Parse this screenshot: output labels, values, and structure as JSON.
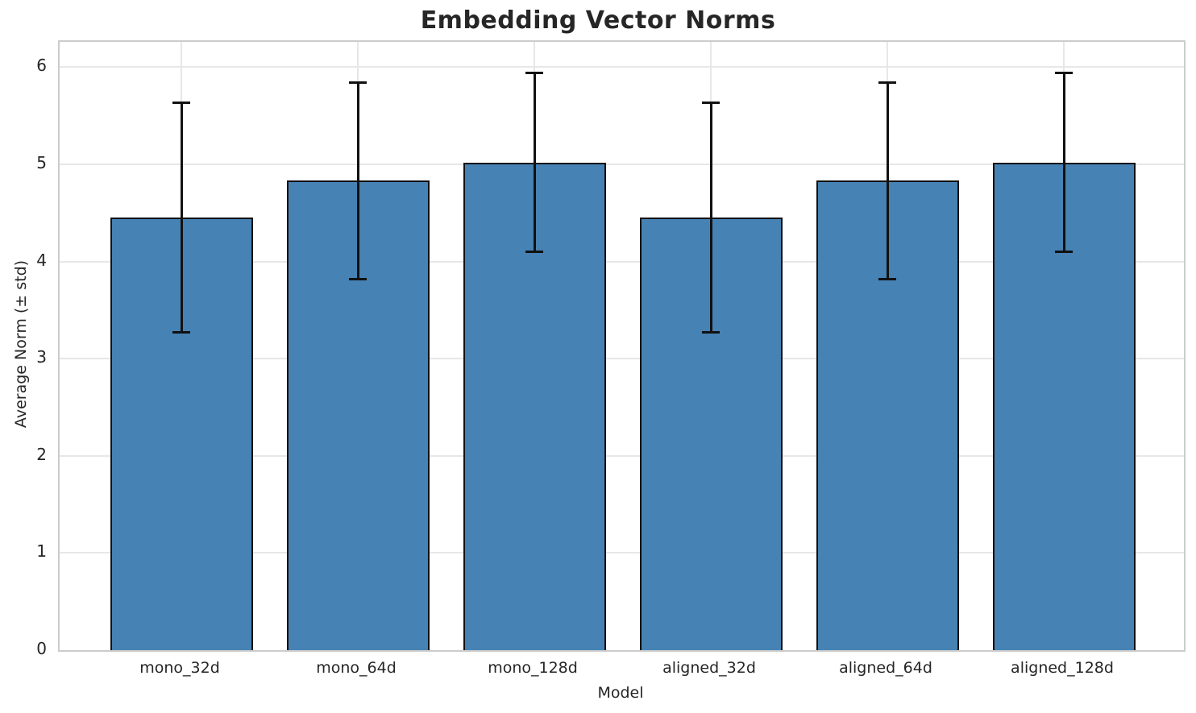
{
  "title": "Embedding Vector Norms",
  "chart_data": {
    "type": "bar",
    "title": "Embedding Vector Norms",
    "xlabel": "Model",
    "ylabel": "Average Norm (± std)",
    "categories": [
      "mono_32d",
      "mono_64d",
      "mono_128d",
      "aligned_32d",
      "aligned_64d",
      "aligned_128d"
    ],
    "values": [
      4.45,
      4.83,
      5.02,
      4.45,
      4.83,
      5.02
    ],
    "errors": [
      1.18,
      1.01,
      0.92,
      1.18,
      1.01,
      0.92
    ],
    "yticks": [
      0,
      1,
      2,
      3,
      4,
      5,
      6
    ],
    "ylim": [
      0,
      6.26
    ],
    "grid": true,
    "legend": null,
    "colors": {
      "bar_fill": "#4682B4",
      "bar_edge": "#111111",
      "error_bar": "#111111",
      "grid": "#e7e7e7",
      "spine": "#cccccc",
      "text": "#262626"
    }
  }
}
